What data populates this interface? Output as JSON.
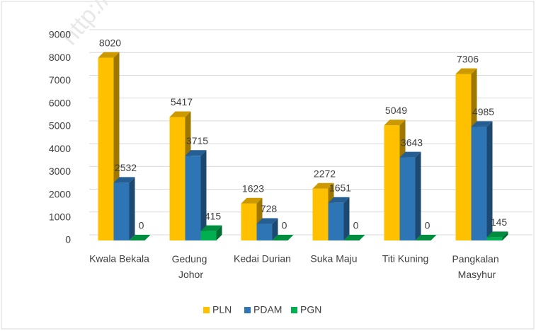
{
  "chart_data": {
    "type": "bar3d",
    "watermark": "http://me",
    "categories": [
      "Kwala Bekala",
      "Gedung\nJohor",
      "Kedai Durian",
      "Suka Maju",
      "Titi Kuning",
      "Pangkalan\nMasyhur"
    ],
    "series": [
      {
        "name": "PLN",
        "color": "#ffc000",
        "values": [
          8020,
          5417,
          1623,
          2272,
          5049,
          7306
        ]
      },
      {
        "name": "PDAM",
        "color": "#2e75b6",
        "values": [
          2532,
          3715,
          728,
          1651,
          3643,
          4985
        ]
      },
      {
        "name": "PGN",
        "color": "#00b050",
        "values": [
          0,
          415,
          0,
          0,
          0,
          145
        ]
      }
    ],
    "ylim": [
      0,
      9000
    ],
    "yticks": [
      0,
      1000,
      2000,
      3000,
      4000,
      5000,
      6000,
      7000,
      8000,
      9000
    ],
    "grid": true,
    "legend": "bottom"
  }
}
